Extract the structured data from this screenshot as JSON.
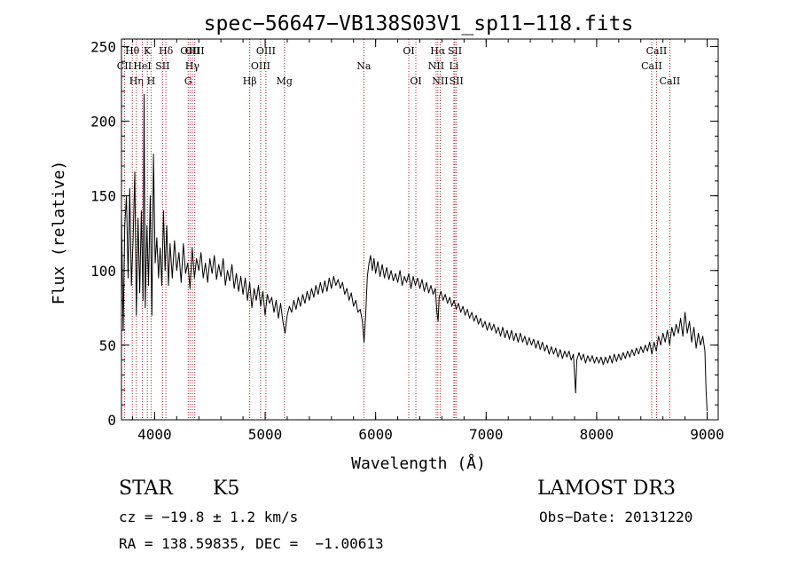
{
  "chart_data": {
    "type": "line",
    "title": "spec−56647−VB138S03V1_sp11−118.fits",
    "xlabel": "Wavelength (Å)",
    "ylabel": "Flux (relative)",
    "xlim": [
      3700,
      9100
    ],
    "ylim": [
      0,
      255
    ],
    "xticks": [
      4000,
      5000,
      6000,
      7000,
      8000,
      9000
    ],
    "yticks": [
      0,
      50,
      100,
      150,
      200,
      250
    ],
    "grid": false,
    "line_color": "#000000",
    "marker_color": "#b22222",
    "lines": [
      {
        "label": "CII",
        "x": 3727,
        "row": 2
      },
      {
        "label": "Hθ",
        "x": 3798,
        "row": 1
      },
      {
        "label": "Hη",
        "x": 3835,
        "row": 3
      },
      {
        "label": "HeI",
        "x": 3889,
        "row": 2
      },
      {
        "label": "K",
        "x": 3934,
        "row": 1
      },
      {
        "label": "H",
        "x": 3968,
        "row": 3
      },
      {
        "label": "SII",
        "x": 4072,
        "row": 2
      },
      {
        "label": "Hδ",
        "x": 4102,
        "row": 1
      },
      {
        "label": "G",
        "x": 4304,
        "row": 3
      },
      {
        "label": "OIII",
        "x": 4320,
        "row": 1
      },
      {
        "label": "Hγ",
        "x": 4341,
        "row": 2
      },
      {
        "label": "OIII",
        "x": 4363,
        "row": 1
      },
      {
        "label": "Hβ",
        "x": 4861,
        "row": 3
      },
      {
        "label": "OIII",
        "x": 4959,
        "row": 2
      },
      {
        "label": "OIII",
        "x": 5007,
        "row": 1
      },
      {
        "label": "Mg",
        "x": 5175,
        "row": 3
      },
      {
        "label": "Na",
        "x": 5893,
        "row": 2
      },
      {
        "label": "OI",
        "x": 6300,
        "row": 1
      },
      {
        "label": "OI",
        "x": 6364,
        "row": 3
      },
      {
        "label": "Hα",
        "x": 6563,
        "row": 1
      },
      {
        "label": "NII",
        "x": 6548,
        "row": 2
      },
      {
        "label": "NII",
        "x": 6584,
        "row": 3
      },
      {
        "label": "SII",
        "x": 6717,
        "row": 1
      },
      {
        "label": "Li",
        "x": 6708,
        "row": 2
      },
      {
        "label": "SII",
        "x": 6731,
        "row": 3
      },
      {
        "label": "CaII",
        "x": 8498,
        "row": 2
      },
      {
        "label": "CaII",
        "x": 8542,
        "row": 1
      },
      {
        "label": "CaII",
        "x": 8662,
        "row": 3
      }
    ],
    "series": [
      {
        "name": "flux",
        "points": [
          [
            3700,
            138
          ],
          [
            3715,
            60
          ],
          [
            3730,
            130
          ],
          [
            3745,
            150
          ],
          [
            3760,
            95
          ],
          [
            3775,
            155
          ],
          [
            3790,
            90
          ],
          [
            3805,
            120
          ],
          [
            3820,
            166
          ],
          [
            3835,
            70
          ],
          [
            3850,
            135
          ],
          [
            3865,
            85
          ],
          [
            3880,
            140
          ],
          [
            3895,
            80
          ],
          [
            3905,
            218
          ],
          [
            3915,
            75
          ],
          [
            3930,
            130
          ],
          [
            3945,
            90
          ],
          [
            3960,
            150
          ],
          [
            3975,
            70
          ],
          [
            3990,
            178
          ],
          [
            4005,
            105
          ],
          [
            4020,
            122
          ],
          [
            4035,
            95
          ],
          [
            4050,
            115
          ],
          [
            4065,
            90
          ],
          [
            4080,
            140
          ],
          [
            4095,
            100
          ],
          [
            4110,
            130
          ],
          [
            4125,
            90
          ],
          [
            4140,
            118
          ],
          [
            4160,
            95
          ],
          [
            4180,
            120
          ],
          [
            4200,
            100
          ],
          [
            4220,
            112
          ],
          [
            4240,
            92
          ],
          [
            4260,
            118
          ],
          [
            4280,
            98
          ],
          [
            4300,
            105
          ],
          [
            4320,
            88
          ],
          [
            4340,
            115
          ],
          [
            4360,
            95
          ],
          [
            4380,
            108
          ],
          [
            4400,
            100
          ],
          [
            4420,
            112
          ],
          [
            4440,
            95
          ],
          [
            4460,
            105
          ],
          [
            4480,
            92
          ],
          [
            4500,
            108
          ],
          [
            4520,
            98
          ],
          [
            4540,
            110
          ],
          [
            4560,
            94
          ],
          [
            4580,
            104
          ],
          [
            4600,
            96
          ],
          [
            4620,
            108
          ],
          [
            4640,
            90
          ],
          [
            4660,
            100
          ],
          [
            4680,
            93
          ],
          [
            4700,
            104
          ],
          [
            4720,
            88
          ],
          [
            4740,
            98
          ],
          [
            4760,
            86
          ],
          [
            4780,
            96
          ],
          [
            4800,
            84
          ],
          [
            4820,
            95
          ],
          [
            4840,
            80
          ],
          [
            4860,
            92
          ],
          [
            4880,
            75
          ],
          [
            4900,
            88
          ],
          [
            4920,
            80
          ],
          [
            4940,
            90
          ],
          [
            4960,
            76
          ],
          [
            4980,
            86
          ],
          [
            5000,
            70
          ],
          [
            5020,
            84
          ],
          [
            5040,
            78
          ],
          [
            5060,
            82
          ],
          [
            5080,
            72
          ],
          [
            5100,
            80
          ],
          [
            5120,
            68
          ],
          [
            5140,
            78
          ],
          [
            5160,
            66
          ],
          [
            5180,
            58
          ],
          [
            5200,
            70
          ],
          [
            5220,
            76
          ],
          [
            5240,
            72
          ],
          [
            5260,
            80
          ],
          [
            5280,
            74
          ],
          [
            5300,
            82
          ],
          [
            5320,
            76
          ],
          [
            5340,
            84
          ],
          [
            5360,
            78
          ],
          [
            5380,
            86
          ],
          [
            5400,
            80
          ],
          [
            5420,
            88
          ],
          [
            5440,
            82
          ],
          [
            5460,
            90
          ],
          [
            5480,
            84
          ],
          [
            5500,
            92
          ],
          [
            5520,
            85
          ],
          [
            5540,
            93
          ],
          [
            5560,
            86
          ],
          [
            5580,
            95
          ],
          [
            5600,
            88
          ],
          [
            5620,
            96
          ],
          [
            5640,
            90
          ],
          [
            5660,
            94
          ],
          [
            5680,
            88
          ],
          [
            5700,
            92
          ],
          [
            5720,
            84
          ],
          [
            5740,
            88
          ],
          [
            5760,
            80
          ],
          [
            5780,
            85
          ],
          [
            5800,
            76
          ],
          [
            5820,
            80
          ],
          [
            5840,
            72
          ],
          [
            5860,
            74
          ],
          [
            5880,
            66
          ],
          [
            5895,
            52
          ],
          [
            5910,
            70
          ],
          [
            5925,
            96
          ],
          [
            5940,
            105
          ],
          [
            5955,
            110
          ],
          [
            5970,
            100
          ],
          [
            5985,
            108
          ],
          [
            6000,
            98
          ],
          [
            6020,
            106
          ],
          [
            6040,
            96
          ],
          [
            6060,
            104
          ],
          [
            6080,
            95
          ],
          [
            6100,
            102
          ],
          [
            6120,
            94
          ],
          [
            6140,
            100
          ],
          [
            6160,
            93
          ],
          [
            6180,
            98
          ],
          [
            6200,
            92
          ],
          [
            6220,
            100
          ],
          [
            6240,
            90
          ],
          [
            6260,
            96
          ],
          [
            6280,
            92
          ],
          [
            6300,
            98
          ],
          [
            6320,
            88
          ],
          [
            6340,
            96
          ],
          [
            6360,
            90
          ],
          [
            6380,
            95
          ],
          [
            6400,
            88
          ],
          [
            6420,
            94
          ],
          [
            6440,
            86
          ],
          [
            6460,
            92
          ],
          [
            6480,
            85
          ],
          [
            6500,
            90
          ],
          [
            6520,
            84
          ],
          [
            6540,
            88
          ],
          [
            6555,
            72
          ],
          [
            6565,
            66
          ],
          [
            6575,
            82
          ],
          [
            6590,
            86
          ],
          [
            6610,
            80
          ],
          [
            6630,
            84
          ],
          [
            6650,
            78
          ],
          [
            6670,
            82
          ],
          [
            6690,
            76
          ],
          [
            6710,
            80
          ],
          [
            6730,
            74
          ],
          [
            6750,
            78
          ],
          [
            6770,
            72
          ],
          [
            6790,
            76
          ],
          [
            6810,
            70
          ],
          [
            6830,
            74
          ],
          [
            6850,
            68
          ],
          [
            6870,
            72
          ],
          [
            6890,
            66
          ],
          [
            6910,
            70
          ],
          [
            6930,
            64
          ],
          [
            6950,
            68
          ],
          [
            6970,
            62
          ],
          [
            6990,
            66
          ],
          [
            7010,
            60
          ],
          [
            7030,
            65
          ],
          [
            7050,
            60
          ],
          [
            7070,
            64
          ],
          [
            7090,
            58
          ],
          [
            7110,
            62
          ],
          [
            7130,
            56
          ],
          [
            7150,
            62
          ],
          [
            7170,
            55
          ],
          [
            7190,
            60
          ],
          [
            7210,
            54
          ],
          [
            7230,
            60
          ],
          [
            7250,
            53
          ],
          [
            7270,
            58
          ],
          [
            7290,
            52
          ],
          [
            7310,
            58
          ],
          [
            7330,
            52
          ],
          [
            7350,
            56
          ],
          [
            7370,
            50
          ],
          [
            7390,
            55
          ],
          [
            7410,
            50
          ],
          [
            7430,
            54
          ],
          [
            7450,
            48
          ],
          [
            7470,
            53
          ],
          [
            7490,
            47
          ],
          [
            7510,
            52
          ],
          [
            7530,
            46
          ],
          [
            7550,
            50
          ],
          [
            7570,
            44
          ],
          [
            7590,
            49
          ],
          [
            7610,
            44
          ],
          [
            7630,
            48
          ],
          [
            7650,
            42
          ],
          [
            7670,
            47
          ],
          [
            7690,
            41
          ],
          [
            7710,
            46
          ],
          [
            7730,
            42
          ],
          [
            7750,
            46
          ],
          [
            7770,
            40
          ],
          [
            7790,
            44
          ],
          [
            7800,
            30
          ],
          [
            7810,
            18
          ],
          [
            7820,
            40
          ],
          [
            7840,
            45
          ],
          [
            7860,
            40
          ],
          [
            7880,
            44
          ],
          [
            7900,
            38
          ],
          [
            7920,
            43
          ],
          [
            7940,
            39
          ],
          [
            7960,
            43
          ],
          [
            7980,
            38
          ],
          [
            8000,
            42
          ],
          [
            8020,
            38
          ],
          [
            8040,
            42
          ],
          [
            8060,
            37
          ],
          [
            8080,
            42
          ],
          [
            8100,
            38
          ],
          [
            8120,
            43
          ],
          [
            8140,
            38
          ],
          [
            8160,
            44
          ],
          [
            8180,
            39
          ],
          [
            8200,
            44
          ],
          [
            8220,
            40
          ],
          [
            8240,
            45
          ],
          [
            8260,
            41
          ],
          [
            8280,
            46
          ],
          [
            8300,
            42
          ],
          [
            8320,
            47
          ],
          [
            8340,
            43
          ],
          [
            8360,
            48
          ],
          [
            8380,
            44
          ],
          [
            8400,
            49
          ],
          [
            8420,
            45
          ],
          [
            8440,
            50
          ],
          [
            8460,
            46
          ],
          [
            8480,
            52
          ],
          [
            8500,
            44
          ],
          [
            8520,
            52
          ],
          [
            8540,
            46
          ],
          [
            8560,
            56
          ],
          [
            8580,
            50
          ],
          [
            8600,
            58
          ],
          [
            8620,
            52
          ],
          [
            8640,
            60
          ],
          [
            8660,
            50
          ],
          [
            8680,
            62
          ],
          [
            8700,
            56
          ],
          [
            8720,
            64
          ],
          [
            8740,
            58
          ],
          [
            8760,
            68
          ],
          [
            8780,
            56
          ],
          [
            8800,
            72
          ],
          [
            8820,
            58
          ],
          [
            8840,
            66
          ],
          [
            8860,
            52
          ],
          [
            8880,
            62
          ],
          [
            8900,
            48
          ],
          [
            8920,
            58
          ],
          [
            8940,
            50
          ],
          [
            8960,
            56
          ],
          [
            8980,
            46
          ],
          [
            8990,
            20
          ],
          [
            9000,
            6
          ]
        ]
      }
    ]
  },
  "info": {
    "object_class": "STAR",
    "subclass": "K5",
    "survey": "LAMOST DR3",
    "cz": "cz = −19.8 ± 1.2 km/s",
    "obs_date": "Obs−Date: 20131220",
    "coords": "RA = 138.59835, DEC =  −1.00613"
  }
}
